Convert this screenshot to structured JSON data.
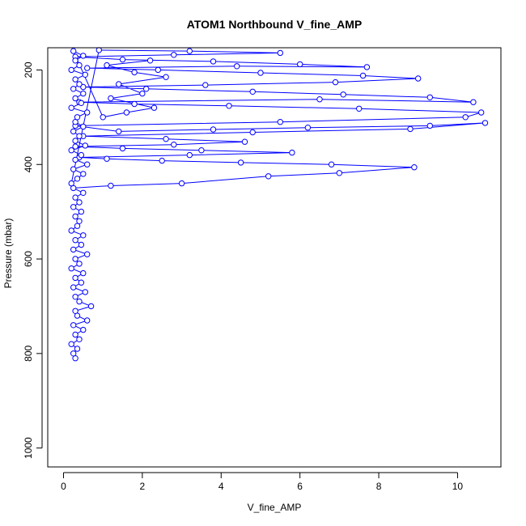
{
  "chart_data": {
    "type": "scatter",
    "title": "ATOM1 Northbound V_fine_AMP",
    "xlabel": "V_fine_AMP",
    "ylabel": "Pressure (mbar)",
    "xlim": [
      -0.4,
      11.1
    ],
    "ylim": [
      1040,
      153
    ],
    "y_reversed": true,
    "x_ticks": [
      0,
      2,
      4,
      6,
      8,
      10
    ],
    "y_ticks": [
      200,
      400,
      600,
      800,
      1000
    ],
    "marker": "open-circle",
    "connected": true,
    "series_color": "#0000ff",
    "series": [
      {
        "name": "",
        "points": [
          [
            0.3,
            810
          ],
          [
            0.25,
            800
          ],
          [
            0.35,
            790
          ],
          [
            0.2,
            780
          ],
          [
            0.4,
            770
          ],
          [
            0.3,
            760
          ],
          [
            0.5,
            750
          ],
          [
            0.25,
            740
          ],
          [
            0.6,
            730
          ],
          [
            0.35,
            720
          ],
          [
            0.3,
            710
          ],
          [
            0.7,
            700
          ],
          [
            0.4,
            690
          ],
          [
            0.3,
            680
          ],
          [
            0.55,
            670
          ],
          [
            0.25,
            660
          ],
          [
            0.45,
            650
          ],
          [
            0.3,
            640
          ],
          [
            0.5,
            630
          ],
          [
            0.2,
            620
          ],
          [
            0.4,
            610
          ],
          [
            0.3,
            600
          ],
          [
            0.6,
            590
          ],
          [
            0.25,
            580
          ],
          [
            0.45,
            570
          ],
          [
            0.3,
            560
          ],
          [
            0.5,
            550
          ],
          [
            0.2,
            540
          ],
          [
            0.35,
            530
          ],
          [
            0.4,
            520
          ],
          [
            0.3,
            510
          ],
          [
            0.45,
            500
          ],
          [
            0.25,
            490
          ],
          [
            0.4,
            480
          ],
          [
            0.3,
            470
          ],
          [
            0.5,
            460
          ],
          [
            0.25,
            450
          ],
          [
            1.2,
            445
          ],
          [
            3.0,
            440
          ],
          [
            5.2,
            425
          ],
          [
            7.0,
            418
          ],
          [
            8.9,
            406
          ],
          [
            6.8,
            400
          ],
          [
            4.5,
            396
          ],
          [
            2.5,
            392
          ],
          [
            1.1,
            388
          ],
          [
            0.4,
            385
          ],
          [
            3.2,
            380
          ],
          [
            5.8,
            375
          ],
          [
            3.5,
            370
          ],
          [
            1.5,
            366
          ],
          [
            0.3,
            362
          ],
          [
            2.8,
            358
          ],
          [
            4.6,
            352
          ],
          [
            2.6,
            346
          ],
          [
            0.5,
            340
          ],
          [
            4.8,
            332
          ],
          [
            8.8,
            325
          ],
          [
            10.7,
            312
          ],
          [
            9.3,
            318
          ],
          [
            6.2,
            322
          ],
          [
            3.8,
            326
          ],
          [
            1.4,
            330
          ],
          [
            0.3,
            318
          ],
          [
            5.5,
            310
          ],
          [
            10.2,
            300
          ],
          [
            10.6,
            290
          ],
          [
            7.5,
            282
          ],
          [
            4.2,
            276
          ],
          [
            1.8,
            272
          ],
          [
            0.4,
            268
          ],
          [
            6.5,
            262
          ],
          [
            10.4,
            268
          ],
          [
            9.3,
            258
          ],
          [
            7.1,
            252
          ],
          [
            4.8,
            246
          ],
          [
            2.1,
            240
          ],
          [
            0.5,
            236
          ],
          [
            3.6,
            232
          ],
          [
            6.9,
            226
          ],
          [
            9.0,
            218
          ],
          [
            7.6,
            212
          ],
          [
            5.0,
            206
          ],
          [
            2.4,
            200
          ],
          [
            0.6,
            196
          ],
          [
            4.4,
            192
          ],
          [
            7.7,
            194
          ],
          [
            6.0,
            188
          ],
          [
            3.8,
            182
          ],
          [
            1.5,
            178
          ],
          [
            0.3,
            172
          ],
          [
            2.8,
            168
          ],
          [
            5.5,
            164
          ],
          [
            3.2,
            160
          ],
          [
            0.9,
            158
          ],
          [
            0.2,
            440
          ],
          [
            0.35,
            430
          ],
          [
            0.5,
            420
          ],
          [
            0.25,
            410
          ],
          [
            0.6,
            400
          ],
          [
            0.3,
            390
          ],
          [
            0.45,
            380
          ],
          [
            0.2,
            370
          ],
          [
            0.55,
            360
          ],
          [
            0.3,
            350
          ],
          [
            0.4,
            340
          ],
          [
            0.25,
            330
          ],
          [
            0.5,
            320
          ],
          [
            0.3,
            310
          ],
          [
            0.35,
            300
          ],
          [
            0.6,
            290
          ],
          [
            0.2,
            280
          ],
          [
            0.45,
            270
          ],
          [
            0.3,
            260
          ],
          [
            0.5,
            250
          ],
          [
            0.25,
            240
          ],
          [
            0.4,
            230
          ],
          [
            0.3,
            220
          ],
          [
            0.55,
            210
          ],
          [
            0.2,
            200
          ],
          [
            0.4,
            190
          ],
          [
            0.3,
            180
          ],
          [
            0.5,
            170
          ],
          [
            0.25,
            160
          ],
          [
            1.0,
            300
          ],
          [
            1.6,
            290
          ],
          [
            2.3,
            280
          ],
          [
            1.2,
            260
          ],
          [
            2.0,
            250
          ],
          [
            1.4,
            230
          ],
          [
            2.6,
            215
          ],
          [
            1.8,
            205
          ],
          [
            1.1,
            190
          ],
          [
            2.2,
            180
          ]
        ]
      }
    ]
  }
}
